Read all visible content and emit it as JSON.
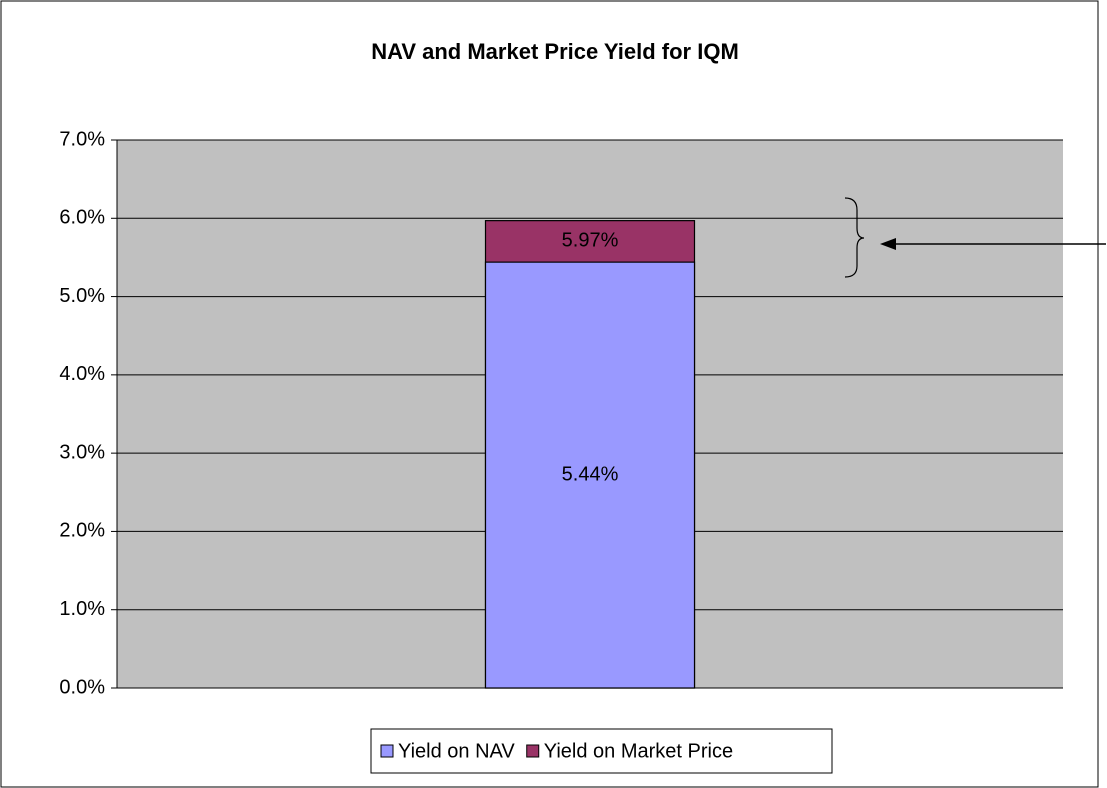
{
  "chart_data": {
    "type": "bar",
    "title": "NAV and Market Price Yield for IQM",
    "categories": [
      null
    ],
    "series": [
      {
        "name": "Yield on NAV",
        "color": "#9999ff",
        "values": [
          5.44
        ],
        "value_labels": [
          "5.44%"
        ]
      },
      {
        "name": "Yield on Market Price",
        "color": "#993366",
        "values": [
          5.97
        ],
        "value_labels": [
          "5.97%"
        ]
      }
    ],
    "overlap": true,
    "ylim": [
      0,
      7
    ],
    "yticks": [
      {
        "value": 0,
        "label": "0.0%"
      },
      {
        "value": 1,
        "label": "1.0%"
      },
      {
        "value": 2,
        "label": "2.0%"
      },
      {
        "value": 3,
        "label": "3.0%"
      },
      {
        "value": 4,
        "label": "4.0%"
      },
      {
        "value": 5,
        "label": "5.0%"
      },
      {
        "value": 6,
        "label": "6.0%"
      },
      {
        "value": 7,
        "label": "7.0%"
      }
    ],
    "grid": true,
    "legend": "bottom"
  }
}
